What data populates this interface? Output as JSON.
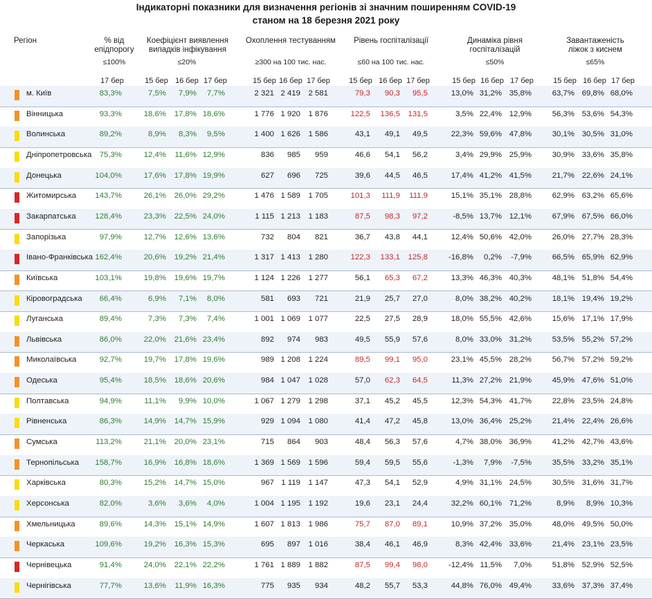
{
  "title_line1": "Індикаторні показники для визначення регіонів зі значним поширенням COVID-19",
  "title_line2": "станом на 18 березня 2021 року",
  "headers": {
    "region": "Регіон",
    "epi1": "% від",
    "epi2": "епідпорогу",
    "coef1": "Коефіцієнт виявлення",
    "coef2": "випадків інфікування",
    "test": "Охоплення тестуванням",
    "hosp": "Рівень госпіталізації",
    "dyn1": "Динаміка рівня",
    "dyn2": "госпіталізацій",
    "oxy1": "Завантаженість",
    "oxy2": "ліжок з киснем"
  },
  "thresholds": {
    "epi": "≤100%",
    "coef": "≤20%",
    "test": "≥300 на 100 тис. нас.",
    "hosp": "≤60 на 100 тис. нас.",
    "dyn": "≤50%",
    "oxy": "≤65%"
  },
  "days": {
    "d15": "15 бер",
    "d16": "16 бер",
    "d17": "17 бер"
  },
  "colors": {
    "orange": "#f0932b",
    "yellow": "#f7dc14",
    "red": "#d62828",
    "green_text": "#2e7d32",
    "red_text": "#c62828"
  },
  "rows": [
    {
      "name": "м. Київ",
      "m": "orange",
      "epi": "83,3%",
      "coef": [
        "7,5%",
        "7,9%",
        "7,7%"
      ],
      "test": [
        "2 321",
        "2 419",
        "2 581"
      ],
      "hosp": [
        "79,3",
        "90,3",
        "95,5"
      ],
      "hc": "r",
      "dyn": [
        "13,0%",
        "31,2%",
        "35,8%"
      ],
      "oxy": [
        "63,7%",
        "69,8%",
        "68,0%"
      ]
    },
    {
      "name": "Вінницька",
      "m": "orange",
      "epi": "93,3%",
      "coef": [
        "18,6%",
        "17,8%",
        "18,6%"
      ],
      "test": [
        "1 776",
        "1 920",
        "1 876"
      ],
      "hosp": [
        "122,5",
        "136,5",
        "131,5"
      ],
      "hc": "r",
      "dyn": [
        "3,5%",
        "22,4%",
        "12,9%"
      ],
      "oxy": [
        "56,3%",
        "53,6%",
        "54,3%"
      ]
    },
    {
      "name": "Волинська",
      "m": "yellow",
      "epi": "89,2%",
      "coef": [
        "8,9%",
        "8,3%",
        "9,5%"
      ],
      "test": [
        "1 400",
        "1 626",
        "1 586"
      ],
      "hosp": [
        "43,1",
        "49,1",
        "49,5"
      ],
      "hc": "b",
      "dyn": [
        "22,3%",
        "59,6%",
        "47,8%"
      ],
      "oxy": [
        "30,1%",
        "30,5%",
        "31,0%"
      ]
    },
    {
      "name": "Дніпропетровська",
      "m": "yellow",
      "epi": "75,3%",
      "coef": [
        "12,4%",
        "11,6%",
        "12,9%"
      ],
      "test": [
        "836",
        "985",
        "959"
      ],
      "hosp": [
        "46,6",
        "54,1",
        "56,2"
      ],
      "hc": "b",
      "dyn": [
        "3,4%",
        "29,9%",
        "25,9%"
      ],
      "oxy": [
        "30,9%",
        "33,6%",
        "35,8%"
      ]
    },
    {
      "name": "Донецька",
      "m": "yellow",
      "epi": "104,0%",
      "coef": [
        "17,6%",
        "17,8%",
        "19,9%"
      ],
      "test": [
        "627",
        "696",
        "725"
      ],
      "hosp": [
        "39,6",
        "44,5",
        "46,5"
      ],
      "hc": "b",
      "dyn": [
        "17,4%",
        "41,2%",
        "41,5%"
      ],
      "oxy": [
        "21,7%",
        "22,6%",
        "24,1%"
      ]
    },
    {
      "name": "Житомирська",
      "m": "red",
      "epi": "143,7%",
      "coef": [
        "26,1%",
        "26,0%",
        "29,2%"
      ],
      "test": [
        "1 476",
        "1 589",
        "1 705"
      ],
      "hosp": [
        "101,3",
        "111,9",
        "111,9"
      ],
      "hc": "r",
      "dyn": [
        "15,1%",
        "35,1%",
        "28,8%"
      ],
      "oxy": [
        "62,9%",
        "63,2%",
        "65,6%"
      ]
    },
    {
      "name": "Закарпатська",
      "m": "red",
      "epi": "128,4%",
      "coef": [
        "23,3%",
        "22,5%",
        "24,0%"
      ],
      "test": [
        "1 115",
        "1 213",
        "1 183"
      ],
      "hosp": [
        "87,5",
        "98,3",
        "97,2"
      ],
      "hc": "r",
      "dyn": [
        "-8,5%",
        "13,7%",
        "12,1%"
      ],
      "oxy": [
        "67,9%",
        "67,5%",
        "66,0%"
      ]
    },
    {
      "name": "Запорізька",
      "m": "yellow",
      "epi": "97,9%",
      "coef": [
        "12,7%",
        "12,6%",
        "13,6%"
      ],
      "test": [
        "732",
        "804",
        "821"
      ],
      "hosp": [
        "36,7",
        "43,8",
        "44,1"
      ],
      "hc": "b",
      "dyn": [
        "12,4%",
        "50,6%",
        "42,0%"
      ],
      "oxy": [
        "26,0%",
        "27,7%",
        "28,3%"
      ]
    },
    {
      "name": "Івано-Франківська",
      "m": "red",
      "epi": "162,4%",
      "coef": [
        "20,6%",
        "19,2%",
        "21,4%"
      ],
      "test": [
        "1 317",
        "1 413",
        "1 280"
      ],
      "hosp": [
        "122,3",
        "133,1",
        "125,8"
      ],
      "hc": "r",
      "dyn": [
        "-16,8%",
        "0,2%",
        "-7,9%"
      ],
      "oxy": [
        "66,5%",
        "65,9%",
        "62,9%"
      ]
    },
    {
      "name": "Київська",
      "m": "orange",
      "epi": "103,1%",
      "coef": [
        "19,8%",
        "19,6%",
        "19,7%"
      ],
      "test": [
        "1 124",
        "1 226",
        "1 277"
      ],
      "hosp": [
        "56,1",
        "65,3",
        "67,2"
      ],
      "hc": "r2",
      "dyn": [
        "13,3%",
        "46,3%",
        "40,3%"
      ],
      "oxy": [
        "48,1%",
        "51,8%",
        "54,4%"
      ]
    },
    {
      "name": "Кіровоградська",
      "m": "yellow",
      "epi": "66,4%",
      "coef": [
        "6,9%",
        "7,1%",
        "8,0%"
      ],
      "test": [
        "581",
        "693",
        "721"
      ],
      "hosp": [
        "21,9",
        "25,7",
        "27,0"
      ],
      "hc": "b",
      "dyn": [
        "8,0%",
        "38,2%",
        "40,2%"
      ],
      "oxy": [
        "18,1%",
        "19,4%",
        "19,2%"
      ]
    },
    {
      "name": "Луганська",
      "m": "yellow",
      "epi": "89,4%",
      "coef": [
        "7,3%",
        "7,3%",
        "7,4%"
      ],
      "test": [
        "1 001",
        "1 069",
        "1 077"
      ],
      "hosp": [
        "22,5",
        "27,5",
        "28,9"
      ],
      "hc": "b",
      "dyn": [
        "18,0%",
        "55,5%",
        "42,6%"
      ],
      "oxy": [
        "15,6%",
        "17,1%",
        "17,9%"
      ]
    },
    {
      "name": "Львівська",
      "m": "orange",
      "epi": "86,0%",
      "coef": [
        "22,0%",
        "21,6%",
        "23,4%"
      ],
      "test": [
        "892",
        "974",
        "983"
      ],
      "hosp": [
        "49,5",
        "55,9",
        "57,6"
      ],
      "hc": "b",
      "dyn": [
        "8,0%",
        "33,0%",
        "31,2%"
      ],
      "oxy": [
        "53,5%",
        "55,2%",
        "57,2%"
      ]
    },
    {
      "name": "Миколаївська",
      "m": "orange",
      "epi": "92,7%",
      "coef": [
        "19,7%",
        "17,8%",
        "19,6%"
      ],
      "test": [
        "989",
        "1 208",
        "1 224"
      ],
      "hosp": [
        "89,5",
        "99,1",
        "95,0"
      ],
      "hc": "r",
      "dyn": [
        "23,1%",
        "45,5%",
        "28,2%"
      ],
      "oxy": [
        "56,7%",
        "57,2%",
        "59,2%"
      ]
    },
    {
      "name": "Одеська",
      "m": "orange",
      "epi": "95,4%",
      "coef": [
        "18,5%",
        "18,6%",
        "20,6%"
      ],
      "test": [
        "984",
        "1 047",
        "1 028"
      ],
      "hosp": [
        "57,0",
        "62,3",
        "64,5"
      ],
      "hc": "r2",
      "dyn": [
        "11,3%",
        "27,2%",
        "21,9%"
      ],
      "oxy": [
        "45,9%",
        "47,6%",
        "51,0%"
      ]
    },
    {
      "name": "Полтавська",
      "m": "yellow",
      "epi": "94,9%",
      "coef": [
        "11,1%",
        "9,9%",
        "10,0%"
      ],
      "test": [
        "1 067",
        "1 279",
        "1 298"
      ],
      "hosp": [
        "37,1",
        "45,2",
        "45,5"
      ],
      "hc": "b",
      "dyn": [
        "12,3%",
        "54,3%",
        "41,7%"
      ],
      "oxy": [
        "22,8%",
        "23,5%",
        "24,8%"
      ]
    },
    {
      "name": "Рівненська",
      "m": "yellow",
      "epi": "86,3%",
      "coef": [
        "14,9%",
        "14,7%",
        "15,9%"
      ],
      "test": [
        "929",
        "1 094",
        "1 080"
      ],
      "hosp": [
        "41,4",
        "47,2",
        "45,8"
      ],
      "hc": "b",
      "dyn": [
        "13,0%",
        "36,4%",
        "25,2%"
      ],
      "oxy": [
        "21,4%",
        "22,4%",
        "26,6%"
      ]
    },
    {
      "name": "Сумська",
      "m": "orange",
      "epi": "113,2%",
      "coef": [
        "21,1%",
        "20,0%",
        "23,1%"
      ],
      "test": [
        "715",
        "864",
        "903"
      ],
      "hosp": [
        "48,4",
        "56,3",
        "57,6"
      ],
      "hc": "b",
      "dyn": [
        "4,7%",
        "38,0%",
        "36,9%"
      ],
      "oxy": [
        "41,2%",
        "42,7%",
        "43,6%"
      ]
    },
    {
      "name": "Тернопільська",
      "m": "orange",
      "epi": "158,7%",
      "coef": [
        "16,9%",
        "16,8%",
        "18,6%"
      ],
      "test": [
        "1 369",
        "1 569",
        "1 596"
      ],
      "hosp": [
        "59,4",
        "59,5",
        "55,6"
      ],
      "hc": "b",
      "dyn": [
        "-1,3%",
        "7,9%",
        "-7,5%"
      ],
      "oxy": [
        "35,5%",
        "33,2%",
        "35,1%"
      ]
    },
    {
      "name": "Харківська",
      "m": "yellow",
      "epi": "80,3%",
      "coef": [
        "15,2%",
        "14,7%",
        "15,0%"
      ],
      "test": [
        "967",
        "1 119",
        "1 147"
      ],
      "hosp": [
        "47,3",
        "54,1",
        "52,9"
      ],
      "hc": "b",
      "dyn": [
        "4,9%",
        "31,1%",
        "24,5%"
      ],
      "oxy": [
        "30,5%",
        "31,6%",
        "31,7%"
      ]
    },
    {
      "name": "Херсонська",
      "m": "yellow",
      "epi": "82,0%",
      "coef": [
        "3,6%",
        "3,6%",
        "4,0%"
      ],
      "test": [
        "1 004",
        "1 195",
        "1 192"
      ],
      "hosp": [
        "19,6",
        "23,1",
        "24,4"
      ],
      "hc": "b",
      "dyn": [
        "32,2%",
        "60,1%",
        "71,2%"
      ],
      "oxy": [
        "8,9%",
        "8,9%",
        "10,3%"
      ]
    },
    {
      "name": "Хмельницька",
      "m": "orange",
      "epi": "89,6%",
      "coef": [
        "14,3%",
        "15,1%",
        "14,9%"
      ],
      "test": [
        "1 607",
        "1 813",
        "1 986"
      ],
      "hosp": [
        "75,7",
        "87,0",
        "89,1"
      ],
      "hc": "r",
      "dyn": [
        "10,9%",
        "37,2%",
        "35,0%"
      ],
      "oxy": [
        "48,0%",
        "49,5%",
        "50,0%"
      ]
    },
    {
      "name": "Черкаська",
      "m": "orange",
      "epi": "109,6%",
      "coef": [
        "19,2%",
        "16,3%",
        "15,3%"
      ],
      "test": [
        "695",
        "897",
        "1 016"
      ],
      "hosp": [
        "38,4",
        "46,1",
        "46,9"
      ],
      "hc": "b",
      "dyn": [
        "8,3%",
        "42,4%",
        "33,6%"
      ],
      "oxy": [
        "21,4%",
        "23,1%",
        "23,5%"
      ]
    },
    {
      "name": "Чернівецька",
      "m": "red",
      "epi": "91,4%",
      "coef": [
        "24,0%",
        "22,1%",
        "22,2%"
      ],
      "test": [
        "1 761",
        "1 889",
        "1 882"
      ],
      "hosp": [
        "87,5",
        "99,4",
        "98,0"
      ],
      "hc": "r",
      "dyn": [
        "-12,4%",
        "11,5%",
        "7,0%"
      ],
      "oxy": [
        "51,8%",
        "52,9%",
        "52,5%"
      ]
    },
    {
      "name": "Чернігівська",
      "m": "yellow",
      "epi": "77,7%",
      "coef": [
        "13,6%",
        "11,9%",
        "16,3%"
      ],
      "test": [
        "775",
        "935",
        "934"
      ],
      "hosp": [
        "48,2",
        "55,7",
        "53,3"
      ],
      "hc": "b",
      "dyn": [
        "44,8%",
        "76,0%",
        "49,4%"
      ],
      "oxy": [
        "33,6%",
        "37,3%",
        "37,4%"
      ]
    }
  ]
}
